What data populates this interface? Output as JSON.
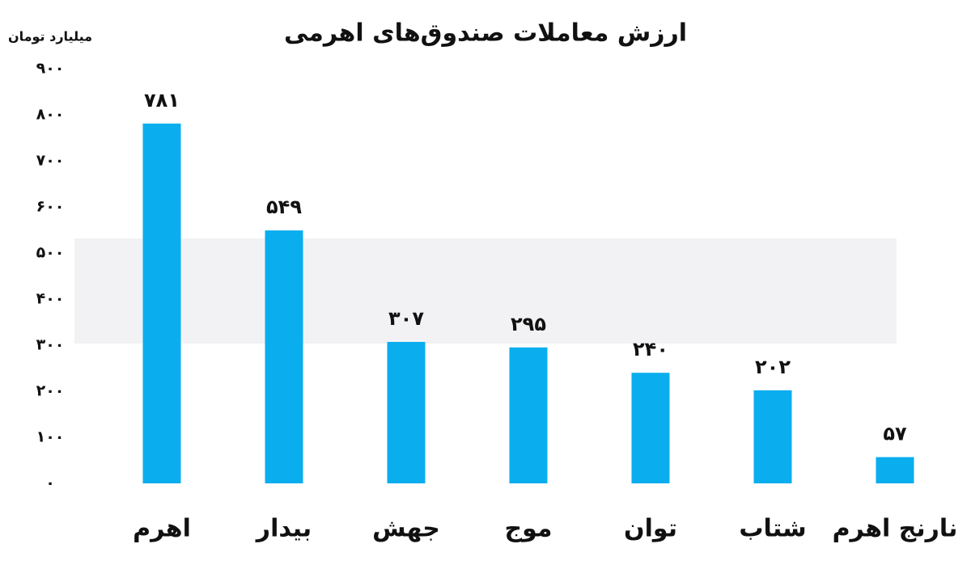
{
  "chart_data": {
    "type": "bar",
    "title": "ارزش معاملات صندوق‌های اهرمی",
    "y_label": "میلیارد تومان",
    "categories": [
      "اهرم",
      "بیدار",
      "جهش",
      "موج",
      "توان",
      "شتاب",
      "نارنج اهرم"
    ],
    "values": [
      781,
      549,
      307,
      295,
      240,
      202,
      57
    ],
    "value_labels": [
      "۷۸۱",
      "۵۴۹",
      "۳۰۷",
      "۲۹۵",
      "۲۴۰",
      "۲۰۲",
      "۵۷"
    ],
    "color": "#0aaeef",
    "ylim": [
      0,
      900
    ],
    "yticks": [
      {
        "value": 0,
        "label": "۰"
      },
      {
        "value": 100,
        "label": "۱۰۰"
      },
      {
        "value": 200,
        "label": "۲۰۰"
      },
      {
        "value": 300,
        "label": "۳۰۰"
      },
      {
        "value": 400,
        "label": "۴۰۰"
      },
      {
        "value": 500,
        "label": "۵۰۰"
      },
      {
        "value": 600,
        "label": "۶۰۰"
      },
      {
        "value": 700,
        "label": "۷۰۰"
      },
      {
        "value": 800,
        "label": "۸۰۰"
      },
      {
        "value": 900,
        "label": "۹۰۰"
      }
    ],
    "grid": false
  }
}
